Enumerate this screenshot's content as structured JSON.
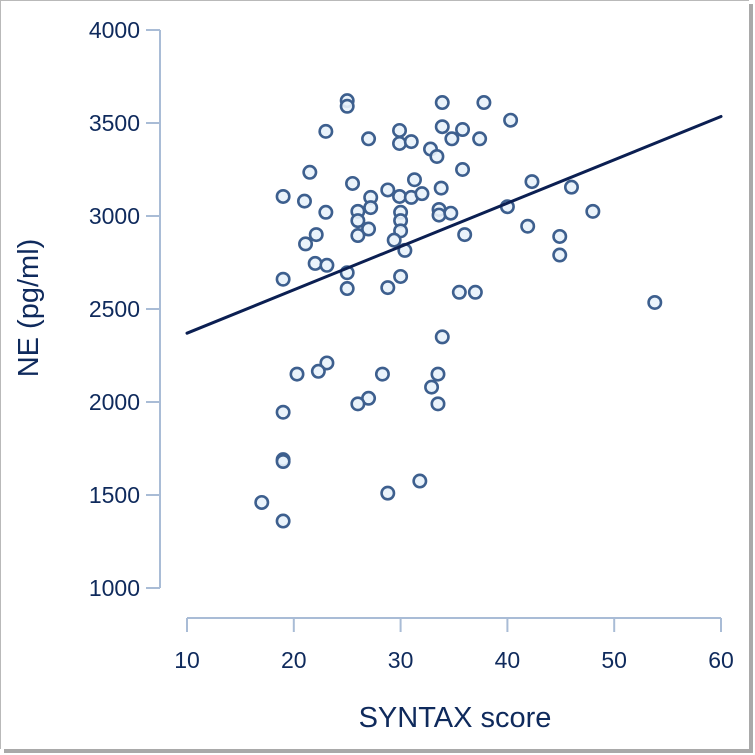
{
  "chart_data": {
    "type": "scatter",
    "title": "",
    "xlabel": "SYNTAX score",
    "ylabel": "NE (pg/ml)",
    "xlim": [
      10,
      60
    ],
    "ylim": [
      1000,
      4000
    ],
    "xticks": [
      10,
      20,
      30,
      40,
      50,
      60
    ],
    "yticks": [
      1000,
      1500,
      2000,
      2500,
      3000,
      3500,
      4000
    ],
    "grid": false,
    "legend": null,
    "colors": {
      "axis_text": "#0f2a5c",
      "axis_line": "#a9bcd6",
      "marker_edge": "#3d5f8e",
      "marker_fill": "#e8f2fb",
      "regression_line": "#0b1f52"
    },
    "regression_line": {
      "x": [
        10,
        60
      ],
      "y": [
        2370,
        3535
      ]
    },
    "points": [
      {
        "x": 25,
        "y": 3620
      },
      {
        "x": 25,
        "y": 3590
      },
      {
        "x": 23,
        "y": 3455
      },
      {
        "x": 27,
        "y": 3415
      },
      {
        "x": 33.9,
        "y": 3610
      },
      {
        "x": 37.8,
        "y": 3610
      },
      {
        "x": 40.3,
        "y": 3515
      },
      {
        "x": 29.9,
        "y": 3460
      },
      {
        "x": 33.9,
        "y": 3480
      },
      {
        "x": 35.8,
        "y": 3465
      },
      {
        "x": 29.9,
        "y": 3390
      },
      {
        "x": 31,
        "y": 3400
      },
      {
        "x": 34.8,
        "y": 3415
      },
      {
        "x": 37.4,
        "y": 3415
      },
      {
        "x": 32.8,
        "y": 3360
      },
      {
        "x": 33.4,
        "y": 3320
      },
      {
        "x": 21.5,
        "y": 3235
      },
      {
        "x": 35.8,
        "y": 3250
      },
      {
        "x": 31.3,
        "y": 3195
      },
      {
        "x": 25.5,
        "y": 3175
      },
      {
        "x": 33.8,
        "y": 3150
      },
      {
        "x": 28.8,
        "y": 3140
      },
      {
        "x": 19,
        "y": 3105
      },
      {
        "x": 21,
        "y": 3080
      },
      {
        "x": 27.2,
        "y": 3100
      },
      {
        "x": 29.9,
        "y": 3105
      },
      {
        "x": 31,
        "y": 3100
      },
      {
        "x": 32,
        "y": 3120
      },
      {
        "x": 23,
        "y": 3020
      },
      {
        "x": 26,
        "y": 3025
      },
      {
        "x": 26,
        "y": 2975
      },
      {
        "x": 27.2,
        "y": 3045
      },
      {
        "x": 30,
        "y": 3020
      },
      {
        "x": 30,
        "y": 2975
      },
      {
        "x": 33.6,
        "y": 3035
      },
      {
        "x": 33.6,
        "y": 3005
      },
      {
        "x": 34.7,
        "y": 3015
      },
      {
        "x": 40,
        "y": 3050
      },
      {
        "x": 42.3,
        "y": 3185
      },
      {
        "x": 46,
        "y": 3155
      },
      {
        "x": 48,
        "y": 3025
      },
      {
        "x": 41.9,
        "y": 2945
      },
      {
        "x": 44.9,
        "y": 2890
      },
      {
        "x": 44.9,
        "y": 2790
      },
      {
        "x": 27,
        "y": 2930
      },
      {
        "x": 30,
        "y": 2920
      },
      {
        "x": 26,
        "y": 2895
      },
      {
        "x": 22.1,
        "y": 2900
      },
      {
        "x": 36,
        "y": 2900
      },
      {
        "x": 29.4,
        "y": 2870
      },
      {
        "x": 21.1,
        "y": 2850
      },
      {
        "x": 30.4,
        "y": 2815
      },
      {
        "x": 22,
        "y": 2745
      },
      {
        "x": 23.1,
        "y": 2735
      },
      {
        "x": 25,
        "y": 2695
      },
      {
        "x": 30,
        "y": 2675
      },
      {
        "x": 19,
        "y": 2660
      },
      {
        "x": 25,
        "y": 2610
      },
      {
        "x": 28.8,
        "y": 2615
      },
      {
        "x": 35.5,
        "y": 2590
      },
      {
        "x": 37,
        "y": 2590
      },
      {
        "x": 53.8,
        "y": 2535
      },
      {
        "x": 33.9,
        "y": 2350
      },
      {
        "x": 23.1,
        "y": 2210
      },
      {
        "x": 22.3,
        "y": 2165
      },
      {
        "x": 20.3,
        "y": 2150
      },
      {
        "x": 28.3,
        "y": 2150
      },
      {
        "x": 33.5,
        "y": 2150
      },
      {
        "x": 32.9,
        "y": 2080
      },
      {
        "x": 27,
        "y": 2020
      },
      {
        "x": 26,
        "y": 1990
      },
      {
        "x": 33.5,
        "y": 1990
      },
      {
        "x": 19,
        "y": 1945
      },
      {
        "x": 19,
        "y": 1690
      },
      {
        "x": 19,
        "y": 1680
      },
      {
        "x": 31.8,
        "y": 1575
      },
      {
        "x": 28.8,
        "y": 1510
      },
      {
        "x": 17,
        "y": 1460
      },
      {
        "x": 19,
        "y": 1360
      }
    ]
  },
  "axes": {
    "x_title": "SYNTAX score",
    "y_title": "NE (pg/ml)",
    "x_tick_labels": [
      "10",
      "20",
      "30",
      "40",
      "50",
      "60"
    ],
    "y_tick_labels": [
      "1000",
      "1500",
      "2000",
      "2500",
      "3000",
      "3500",
      "4000"
    ]
  }
}
